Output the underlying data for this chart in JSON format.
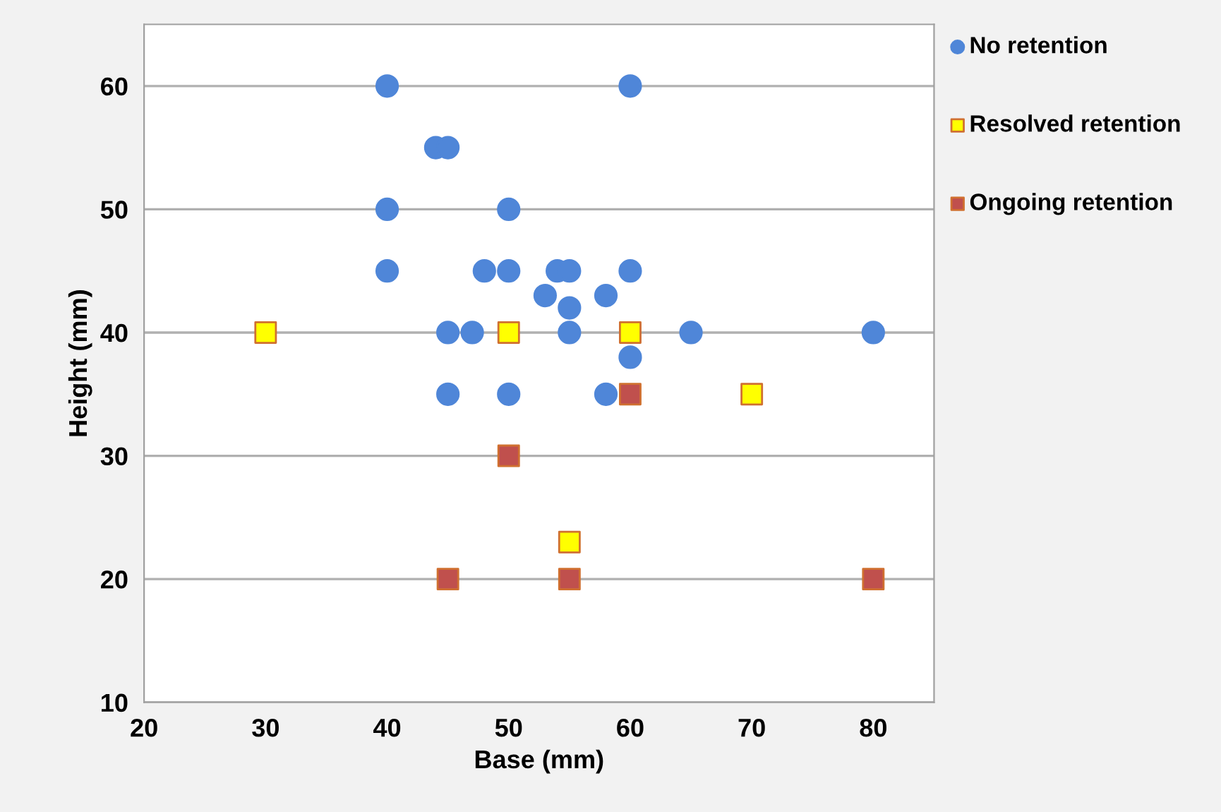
{
  "chart_data": {
    "type": "scatter",
    "xlabel": "Base (mm)",
    "ylabel": "Height (mm)",
    "xlim": [
      20,
      85
    ],
    "xticks": [
      20,
      30,
      40,
      50,
      60,
      70,
      80
    ],
    "ylim": [
      10,
      65
    ],
    "yticks": [
      10,
      20,
      30,
      40,
      50,
      60
    ],
    "grid": "y",
    "legend": "right",
    "series": [
      {
        "name": "No retention",
        "color": "#4f86d8",
        "marker": "circle",
        "x": [
          40,
          60,
          44,
          45,
          40,
          50,
          40,
          48,
          50,
          54,
          55,
          60,
          53,
          58,
          55,
          45,
          47,
          50,
          55,
          65,
          80,
          60,
          45,
          50,
          58
        ],
        "values": [
          60,
          60,
          55,
          55,
          50,
          50,
          45,
          45,
          45,
          45,
          45,
          45,
          43,
          43,
          42,
          40,
          40,
          null,
          40,
          40,
          40,
          38,
          35,
          35,
          35
        ]
      },
      {
        "name": "Resolved retention",
        "color": "#ffff00",
        "marker": "square",
        "x": [
          30,
          50,
          60,
          70,
          55
        ],
        "values": [
          40,
          40,
          40,
          35,
          23
        ]
      },
      {
        "name": "Ongoing retention",
        "color": "#c0504d",
        "marker": "square",
        "x": [
          60,
          50,
          45,
          55,
          80
        ],
        "values": [
          35,
          30,
          20,
          20,
          20
        ]
      }
    ]
  }
}
